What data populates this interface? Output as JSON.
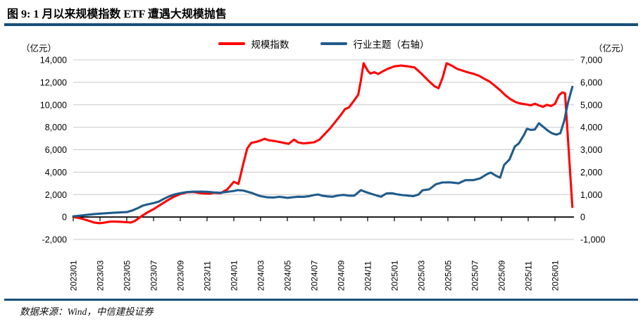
{
  "header": {
    "title": "图 9: 1 月以来规模指数 ETF 遭遇大规模抛售"
  },
  "footer": {
    "source": "数据来源：Wind，中信建投证券"
  },
  "colors": {
    "rule": "#174F7C",
    "grid": "#C8C8C8",
    "axis": "#000000",
    "red_series": "#FF0000",
    "blue_series": "#1F5C8B"
  },
  "chart_data": {
    "type": "line",
    "title": "图 9: 1 月以来规模指数 ETF 遭遇大规模抛售",
    "legend_position": "top-center",
    "grid": "horizontal",
    "left_axis": {
      "unit": "（亿元）",
      "min": -2000,
      "max": 14000,
      "step": 2000,
      "tick_values": [
        14000,
        12000,
        10000,
        8000,
        6000,
        4000,
        2000,
        0,
        -2000
      ],
      "tick_labels": [
        "14,000",
        "12,000",
        "10,000",
        "8,000",
        "6,000",
        "4,000",
        "2,000",
        "0",
        "-2,000"
      ]
    },
    "right_axis": {
      "unit": "（亿元）",
      "min": -1000,
      "max": 7000,
      "step": 1000,
      "tick_values": [
        7000,
        6000,
        5000,
        4000,
        3000,
        2000,
        1000,
        0,
        -1000
      ],
      "tick_labels": [
        "7,000",
        "6,000",
        "5,000",
        "4,000",
        "3,000",
        "2,000",
        "1,000",
        "0",
        "-1,000"
      ]
    },
    "x_axis": {
      "start_month": "2023/01",
      "end_month": "2026/02",
      "tick_every_months": 2,
      "tick_labels": [
        "2023/01",
        "2023/03",
        "2023/05",
        "2023/07",
        "2023/09",
        "2023/11",
        "2024/01",
        "2024/03",
        "2024/05",
        "2024/07",
        "2024/09",
        "2024/11",
        "2025/01",
        "2025/03",
        "2025/05",
        "2025/07",
        "2025/09",
        "2025/11",
        "2026/01"
      ]
    },
    "legend": [
      {
        "label": "规模指数",
        "color": "#FF0000"
      },
      {
        "label": "行业主题（右轴）",
        "color": "#1F5C8B"
      }
    ],
    "series": [
      {
        "name": "规模指数",
        "axis": "left",
        "color": "#FF0000",
        "points": [
          [
            0,
            0
          ],
          [
            0.4,
            -80
          ],
          [
            0.8,
            -200
          ],
          [
            1.2,
            -350
          ],
          [
            1.6,
            -500
          ],
          [
            2,
            -550
          ],
          [
            2.4,
            -480
          ],
          [
            2.8,
            -400
          ],
          [
            3.2,
            -410
          ],
          [
            3.6,
            -430
          ],
          [
            4,
            -460
          ],
          [
            4.3,
            -490
          ],
          [
            4.6,
            -350
          ],
          [
            4.9,
            -100
          ],
          [
            5.2,
            150
          ],
          [
            5.6,
            450
          ],
          [
            6,
            700
          ],
          [
            6.5,
            1080
          ],
          [
            7,
            1450
          ],
          [
            7.5,
            1800
          ],
          [
            8,
            2050
          ],
          [
            8.5,
            2200
          ],
          [
            9,
            2230
          ],
          [
            9.4,
            2140
          ],
          [
            9.8,
            2100
          ],
          [
            10.2,
            2080
          ],
          [
            10.5,
            2160
          ],
          [
            11,
            2120
          ],
          [
            11.5,
            2450
          ],
          [
            12,
            3140
          ],
          [
            12.35,
            2950
          ],
          [
            12.7,
            4700
          ],
          [
            13,
            6100
          ],
          [
            13.3,
            6600
          ],
          [
            13.7,
            6700
          ],
          [
            14,
            6820
          ],
          [
            14.3,
            6970
          ],
          [
            14.6,
            6840
          ],
          [
            15,
            6780
          ],
          [
            15.4,
            6690
          ],
          [
            15.8,
            6590
          ],
          [
            16.1,
            6520
          ],
          [
            16.5,
            6900
          ],
          [
            16.8,
            6650
          ],
          [
            17.2,
            6560
          ],
          [
            17.6,
            6600
          ],
          [
            18,
            6660
          ],
          [
            18.4,
            6900
          ],
          [
            18.8,
            7400
          ],
          [
            19.2,
            7900
          ],
          [
            19.6,
            8500
          ],
          [
            20,
            9100
          ],
          [
            20.3,
            9600
          ],
          [
            20.6,
            9760
          ],
          [
            21,
            10400
          ],
          [
            21.3,
            10900
          ],
          [
            21.5,
            12200
          ],
          [
            21.7,
            13700
          ],
          [
            22,
            13050
          ],
          [
            22.2,
            12780
          ],
          [
            22.5,
            12900
          ],
          [
            22.8,
            12740
          ],
          [
            23.1,
            12960
          ],
          [
            23.5,
            13200
          ],
          [
            24,
            13420
          ],
          [
            24.5,
            13490
          ],
          [
            25,
            13420
          ],
          [
            25.5,
            13330
          ],
          [
            26,
            12800
          ],
          [
            26.5,
            12200
          ],
          [
            27,
            11650
          ],
          [
            27.3,
            11480
          ],
          [
            27.6,
            12400
          ],
          [
            27.9,
            13700
          ],
          [
            28.3,
            13480
          ],
          [
            28.7,
            13200
          ],
          [
            29.1,
            13040
          ],
          [
            29.5,
            12880
          ],
          [
            29.9,
            12760
          ],
          [
            30.3,
            12600
          ],
          [
            30.7,
            12330
          ],
          [
            31.1,
            12080
          ],
          [
            31.5,
            11700
          ],
          [
            31.9,
            11300
          ],
          [
            32.3,
            10840
          ],
          [
            32.7,
            10480
          ],
          [
            33.1,
            10220
          ],
          [
            33.5,
            10090
          ],
          [
            33.9,
            10020
          ],
          [
            34.2,
            9950
          ],
          [
            34.5,
            10090
          ],
          [
            34.8,
            9940
          ],
          [
            35.1,
            9820
          ],
          [
            35.4,
            10000
          ],
          [
            35.7,
            9890
          ],
          [
            36,
            10080
          ],
          [
            36.3,
            10850
          ],
          [
            36.55,
            11100
          ],
          [
            36.75,
            11020
          ],
          [
            37.3,
            900
          ]
        ]
      },
      {
        "name": "行业主题（右轴）",
        "axis": "right",
        "color": "#1F5C8B",
        "points": [
          [
            0,
            30
          ],
          [
            0.5,
            60
          ],
          [
            1,
            95
          ],
          [
            1.5,
            125
          ],
          [
            2,
            150
          ],
          [
            2.5,
            170
          ],
          [
            3,
            190
          ],
          [
            3.5,
            205
          ],
          [
            4,
            220
          ],
          [
            4.4,
            290
          ],
          [
            4.8,
            390
          ],
          [
            5.2,
            510
          ],
          [
            5.6,
            570
          ],
          [
            6,
            620
          ],
          [
            6.4,
            690
          ],
          [
            6.8,
            820
          ],
          [
            7.2,
            930
          ],
          [
            7.6,
            1010
          ],
          [
            8,
            1060
          ],
          [
            8.5,
            1110
          ],
          [
            9,
            1130
          ],
          [
            9.5,
            1130
          ],
          [
            10,
            1125
          ],
          [
            10.5,
            1095
          ],
          [
            11,
            1080
          ],
          [
            11.5,
            1120
          ],
          [
            12,
            1160
          ],
          [
            12.3,
            1200
          ],
          [
            12.7,
            1180
          ],
          [
            13,
            1130
          ],
          [
            13.4,
            1060
          ],
          [
            13.7,
            990
          ],
          [
            14,
            930
          ],
          [
            14.5,
            880
          ],
          [
            15,
            870
          ],
          [
            15.4,
            900
          ],
          [
            15.7,
            880
          ],
          [
            16,
            855
          ],
          [
            16.4,
            880
          ],
          [
            16.8,
            905
          ],
          [
            17.2,
            900
          ],
          [
            17.6,
            925
          ],
          [
            18,
            980
          ],
          [
            18.3,
            1005
          ],
          [
            18.6,
            950
          ],
          [
            19,
            920
          ],
          [
            19.4,
            905
          ],
          [
            19.8,
            960
          ],
          [
            20.2,
            985
          ],
          [
            20.6,
            950
          ],
          [
            21,
            950
          ],
          [
            21.5,
            1200
          ],
          [
            21.9,
            1105
          ],
          [
            22.3,
            1030
          ],
          [
            22.7,
            955
          ],
          [
            23,
            905
          ],
          [
            23.4,
            1050
          ],
          [
            23.8,
            1060
          ],
          [
            24.2,
            1010
          ],
          [
            24.6,
            975
          ],
          [
            25,
            955
          ],
          [
            25.4,
            930
          ],
          [
            25.8,
            1000
          ],
          [
            26.1,
            1190
          ],
          [
            26.6,
            1235
          ],
          [
            27.1,
            1460
          ],
          [
            27.6,
            1540
          ],
          [
            28.2,
            1545
          ],
          [
            28.8,
            1505
          ],
          [
            29.3,
            1640
          ],
          [
            29.9,
            1645
          ],
          [
            30.4,
            1720
          ],
          [
            30.9,
            1905
          ],
          [
            31.2,
            1980
          ],
          [
            31.6,
            1835
          ],
          [
            31.9,
            1755
          ],
          [
            32.2,
            2320
          ],
          [
            32.6,
            2560
          ],
          [
            33,
            3140
          ],
          [
            33.3,
            3280
          ],
          [
            33.7,
            3670
          ],
          [
            33.9,
            3930
          ],
          [
            34.2,
            3880
          ],
          [
            34.5,
            3900
          ],
          [
            34.8,
            4180
          ],
          [
            35.1,
            4030
          ],
          [
            35.5,
            3830
          ],
          [
            35.8,
            3725
          ],
          [
            36.1,
            3670
          ],
          [
            36.4,
            3730
          ],
          [
            36.7,
            4300
          ],
          [
            36.95,
            5050
          ],
          [
            37.3,
            5800
          ]
        ]
      }
    ]
  }
}
